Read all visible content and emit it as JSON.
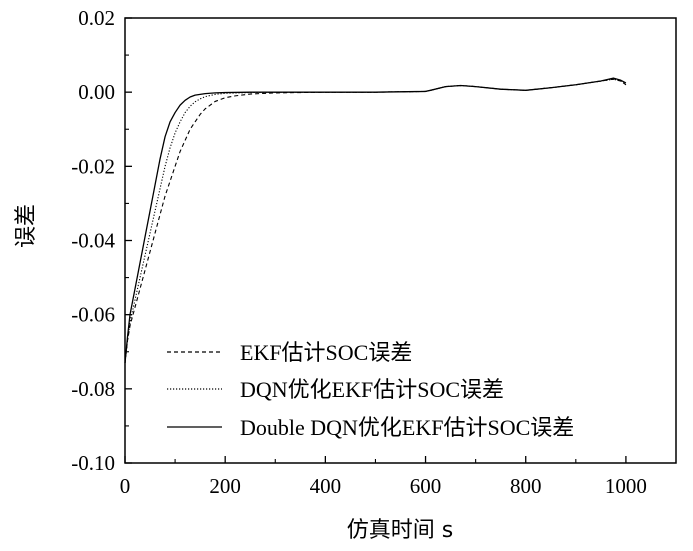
{
  "chart_data": {
    "type": "line",
    "title": "",
    "xlabel": "仿真时间  s",
    "ylabel": "误差",
    "xlim": [
      0,
      1100
    ],
    "ylim": [
      -0.1,
      0.02
    ],
    "xticks": [
      0,
      200,
      400,
      600,
      800,
      1000
    ],
    "xtick_labels": [
      "0",
      "200",
      "400",
      "600",
      "800",
      "1000"
    ],
    "yticks": [
      0.02,
      0.0,
      -0.02,
      -0.04,
      -0.06,
      -0.08,
      -0.1
    ],
    "ytick_labels": [
      "0.02",
      "0.00",
      "-0.02",
      "-0.04",
      "-0.06",
      "-0.08",
      "-0.10"
    ],
    "grid": false,
    "legend_position": "bottom-right",
    "series": [
      {
        "name": "EKF估计SOC误差",
        "style": "dashed",
        "color": "#000000",
        "x": [
          0,
          5,
          10,
          20,
          30,
          40,
          50,
          60,
          70,
          80,
          90,
          100,
          110,
          120,
          130,
          140,
          150,
          160,
          170,
          180,
          200,
          220,
          250,
          300,
          400,
          500,
          600,
          610,
          640,
          670,
          700,
          750,
          800,
          850,
          900,
          950,
          975,
          990,
          1000
        ],
        "y": [
          -0.073,
          -0.067,
          -0.063,
          -0.058,
          -0.053,
          -0.048,
          -0.043,
          -0.038,
          -0.033,
          -0.028,
          -0.024,
          -0.02,
          -0.016,
          -0.013,
          -0.01,
          -0.008,
          -0.006,
          -0.0045,
          -0.0035,
          -0.0025,
          -0.0015,
          -0.001,
          -0.0005,
          -0.0002,
          0.0,
          0.0,
          0.0002,
          0.0005,
          0.0015,
          0.0018,
          0.0015,
          0.0008,
          0.0005,
          0.0012,
          0.002,
          0.003,
          0.0035,
          0.003,
          0.002
        ]
      },
      {
        "name": "DQN优化EKF估计SOC误差",
        "style": "dotted",
        "color": "#000000",
        "x": [
          0,
          5,
          10,
          20,
          30,
          40,
          50,
          60,
          70,
          80,
          90,
          100,
          110,
          120,
          130,
          140,
          150,
          160,
          180,
          200,
          250,
          300,
          400,
          500,
          600,
          610,
          640,
          670,
          700,
          750,
          800,
          850,
          900,
          950,
          975,
          990,
          1000
        ],
        "y": [
          -0.073,
          -0.067,
          -0.062,
          -0.056,
          -0.05,
          -0.044,
          -0.038,
          -0.032,
          -0.026,
          -0.02,
          -0.015,
          -0.011,
          -0.008,
          -0.0055,
          -0.0038,
          -0.0026,
          -0.0018,
          -0.0012,
          -0.0006,
          -0.0003,
          -0.0001,
          0.0,
          0.0,
          0.0,
          0.0002,
          0.0005,
          0.0015,
          0.0018,
          0.0015,
          0.0008,
          0.0005,
          0.0012,
          0.002,
          0.003,
          0.0035,
          0.003,
          0.002
        ]
      },
      {
        "name": "Double DQN优化EKF估计SOC误差",
        "style": "solid",
        "color": "#000000",
        "x": [
          0,
          5,
          10,
          20,
          30,
          40,
          50,
          60,
          70,
          80,
          90,
          100,
          110,
          120,
          130,
          140,
          160,
          180,
          200,
          250,
          300,
          400,
          500,
          600,
          610,
          640,
          670,
          700,
          750,
          800,
          850,
          900,
          950,
          975,
          990,
          1000
        ],
        "y": [
          -0.073,
          -0.066,
          -0.06,
          -0.053,
          -0.046,
          -0.039,
          -0.032,
          -0.025,
          -0.018,
          -0.012,
          -0.008,
          -0.0055,
          -0.0035,
          -0.0022,
          -0.0013,
          -0.0008,
          -0.0004,
          -0.0002,
          -0.0001,
          0.0,
          0.0,
          0.0,
          0.0,
          0.0002,
          0.0005,
          0.0015,
          0.0018,
          0.0015,
          0.0008,
          0.0005,
          0.0012,
          0.002,
          0.003,
          0.0038,
          0.0032,
          0.0025
        ]
      }
    ]
  }
}
